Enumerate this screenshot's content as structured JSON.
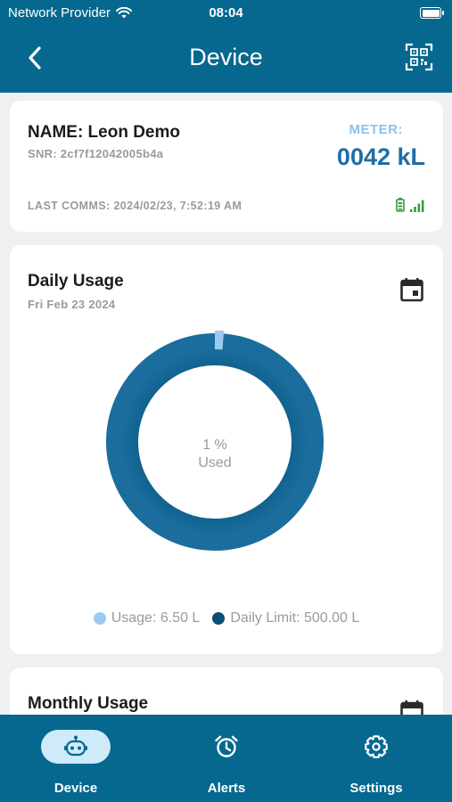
{
  "status_bar": {
    "carrier": "Network Provider",
    "time": "08:04"
  },
  "header": {
    "title": "Device",
    "back_icon": "chevron-left-icon",
    "qr_icon": "qr-code-icon"
  },
  "device": {
    "name": "NAME: Leon Demo",
    "snr": "SNR: 2cf7f12042005b4a",
    "meter_label": "METER:",
    "meter_value": "0042 kL",
    "last_comms": "LAST COMMS: 2024/02/23, 7:52:19 AM",
    "battery_icon": "battery-icon",
    "signal_icon": "signal-icon",
    "status_color": "#2e9d3a"
  },
  "daily": {
    "title": "Daily Usage",
    "date": "Fri Feb 23 2024",
    "calendar_icon": "calendar-icon",
    "percent_text": "1 %",
    "used_text": "Used",
    "used_fraction": 0.013,
    "legend": [
      {
        "label": "Usage: 6.50 L",
        "color": "#9ccaf0"
      },
      {
        "label": "Daily Limit: 500.00 L",
        "color": "#0c4f78"
      }
    ]
  },
  "monthly": {
    "title": "Monthly Usage",
    "calendar_icon": "calendar-icon"
  },
  "nav": {
    "items": [
      {
        "label": "Device",
        "icon": "robot-icon",
        "active": true
      },
      {
        "label": "Alerts",
        "icon": "alarm-clock-icon",
        "active": false
      },
      {
        "label": "Settings",
        "icon": "gear-icon",
        "active": false
      }
    ]
  },
  "colors": {
    "brand": "#06688f",
    "meter": "#1e6ea7",
    "meter_label": "#8ec1ea"
  }
}
